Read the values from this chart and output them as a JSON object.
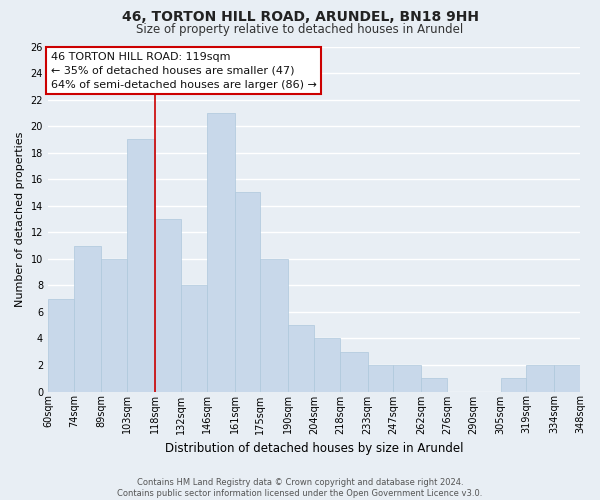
{
  "title": "46, TORTON HILL ROAD, ARUNDEL, BN18 9HH",
  "subtitle": "Size of property relative to detached houses in Arundel",
  "xlabel": "Distribution of detached houses by size in Arundel",
  "ylabel": "Number of detached properties",
  "bin_edges": [
    60,
    74,
    89,
    103,
    118,
    132,
    146,
    161,
    175,
    190,
    204,
    218,
    233,
    247,
    262,
    276,
    290,
    305,
    319,
    334,
    348
  ],
  "counts": [
    7,
    11,
    10,
    19,
    13,
    8,
    21,
    15,
    10,
    5,
    4,
    3,
    2,
    2,
    1,
    0,
    0,
    1,
    2,
    2
  ],
  "bin_labels": [
    "60sqm",
    "74sqm",
    "89sqm",
    "103sqm",
    "118sqm",
    "132sqm",
    "146sqm",
    "161sqm",
    "175sqm",
    "190sqm",
    "204sqm",
    "218sqm",
    "233sqm",
    "247sqm",
    "262sqm",
    "276sqm",
    "290sqm",
    "305sqm",
    "319sqm",
    "334sqm",
    "348sqm"
  ],
  "bar_color": "#c8d8ea",
  "bar_edge_color": "#aec8dc",
  "ref_line_x": 118,
  "ref_line_color": "#cc0000",
  "ylim": [
    0,
    26
  ],
  "yticks": [
    0,
    2,
    4,
    6,
    8,
    10,
    12,
    14,
    16,
    18,
    20,
    22,
    24,
    26
  ],
  "annotation_title": "46 TORTON HILL ROAD: 119sqm",
  "annotation_line1": "← 35% of detached houses are smaller (47)",
  "annotation_line2": "64% of semi-detached houses are larger (86) →",
  "annotation_box_color": "#ffffff",
  "annotation_box_edge": "#cc0000",
  "footer_line1": "Contains HM Land Registry data © Crown copyright and database right 2024.",
  "footer_line2": "Contains public sector information licensed under the Open Government Licence v3.0.",
  "background_color": "#e8eef4",
  "grid_color": "#ffffff",
  "title_fontsize": 10,
  "subtitle_fontsize": 8.5,
  "ylabel_fontsize": 8,
  "xlabel_fontsize": 8.5,
  "tick_fontsize": 7,
  "ann_fontsize": 8,
  "footer_fontsize": 6
}
